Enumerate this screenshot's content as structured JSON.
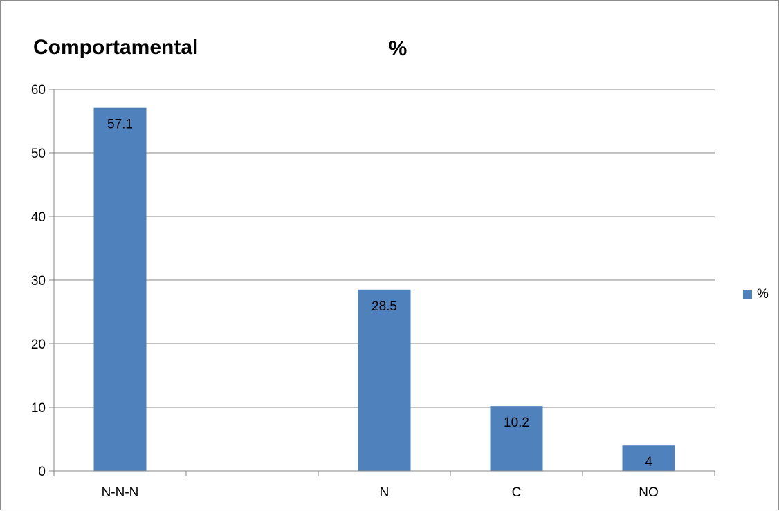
{
  "chart_data": {
    "type": "bar",
    "title": "Comportamental",
    "subtitle": "%",
    "categories": [
      "N-N-N",
      "",
      "N",
      "C",
      "NO"
    ],
    "series": [
      {
        "name": "%",
        "values": [
          57.1,
          null,
          28.5,
          10.2,
          4
        ],
        "color": "#4f81bd"
      }
    ],
    "data_labels": [
      "57.1",
      "",
      "28.5",
      "10.2",
      "4"
    ],
    "y_ticks": [
      "0",
      "10",
      "20",
      "30",
      "40",
      "50",
      "60"
    ],
    "ylim": [
      0,
      60
    ],
    "grid": true,
    "legend": {
      "position": "right",
      "label": "%"
    },
    "colors": {
      "bar": "#4f81bd",
      "grid": "#868686",
      "axis": "#868686",
      "frame": "#8c8c8c"
    }
  }
}
